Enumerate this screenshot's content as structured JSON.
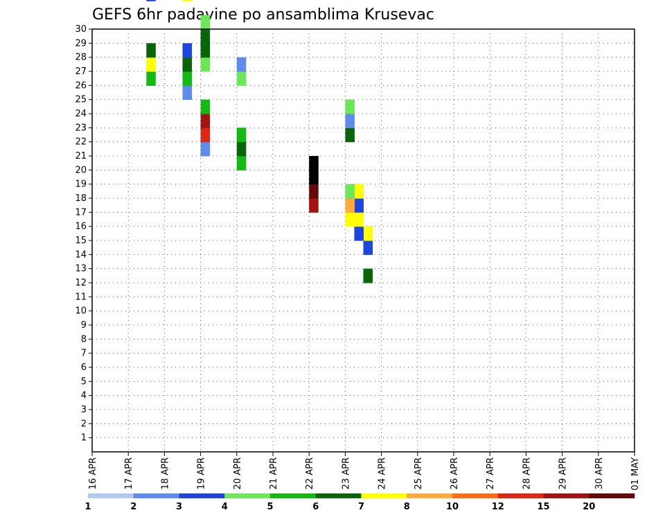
{
  "chart_data": {
    "type": "heatmap",
    "title": "GEFS 6hr padavine po ansamblima Krusevac",
    "x_tick_labels": [
      "16 APR",
      "17 APR",
      "18 APR",
      "19 APR",
      "20 APR",
      "21 APR",
      "22 APR",
      "23 APR",
      "24 APR",
      "25 APR",
      "26 APR",
      "27 APR",
      "28 APR",
      "29 APR",
      "30 APR",
      "01 MAY"
    ],
    "x_range_days": [
      0,
      15
    ],
    "x_step_hours": 6,
    "y_tick_labels": [
      "1",
      "2",
      "3",
      "4",
      "5",
      "6",
      "7",
      "8",
      "9",
      "10",
      "11",
      "12",
      "13",
      "14",
      "15",
      "16",
      "17",
      "18",
      "19",
      "20",
      "21",
      "22",
      "23",
      "24",
      "25",
      "26",
      "27",
      "28",
      "29",
      "30"
    ],
    "y_range": [
      0,
      30
    ],
    "grid": "dotted",
    "colorbar": {
      "labels": [
        "1",
        "2",
        "3",
        "4",
        "5",
        "6",
        "7",
        "8",
        "10",
        "12",
        "15",
        "20"
      ],
      "colors": [
        "#b4c8f0",
        "#5f8cea",
        "#1e46dc",
        "#6ee65a",
        "#14b914",
        "#0a640a",
        "#ffff00",
        "#ffaa3c",
        "#ff6e14",
        "#dc2814",
        "#a01414",
        "#640a0a"
      ]
    },
    "cells": [
      [
        30,
        [
          [
            13,
            5
          ],
          [
            15,
            2
          ],
          [
            16,
            6
          ]
        ]
      ],
      [
        29,
        [
          [
            16,
            2
          ],
          [
            17,
            6
          ],
          [
            18,
            2
          ],
          [
            19,
            6
          ]
        ]
      ],
      [
        28,
        [
          [
            17,
            6
          ],
          [
            18,
            7
          ],
          [
            19,
            3
          ],
          [
            23,
            5
          ],
          [
            24,
            1
          ],
          [
            25,
            3
          ]
        ]
      ],
      [
        24,
        [
          [
            18,
            10
          ],
          [
            19,
            11
          ],
          [
            20,
            12
          ],
          [
            21,
            13
          ],
          [
            54,
            1
          ],
          [
            55,
            2
          ]
        ]
      ],
      [
        16,
        [
          [
            21,
            4
          ],
          [
            22,
            5
          ],
          [
            23,
            4
          ],
          [
            27,
            3
          ],
          [
            28,
            1
          ],
          [
            36,
            1
          ],
          [
            37,
            2
          ],
          [
            59,
            1
          ],
          [
            60,
            3
          ],
          [
            61,
            1
          ]
        ]
      ],
      [
        12,
        [
          [
            22,
            1
          ],
          [
            23,
            9
          ],
          [
            24,
            10
          ],
          [
            25,
            4
          ],
          [
            28,
            3
          ],
          [
            29,
            5
          ],
          [
            30,
            5
          ],
          [
            31,
            3
          ],
          [
            35,
            3
          ],
          [
            36,
            2
          ],
          [
            37,
            1
          ],
          [
            38,
            1
          ],
          [
            39,
            1
          ],
          [
            40,
            1
          ],
          [
            41,
            4
          ],
          [
            42,
            4
          ],
          [
            43,
            5
          ],
          [
            44,
            7
          ],
          [
            45,
            9
          ],
          [
            46,
            10
          ],
          [
            47,
            11
          ],
          [
            48,
            2
          ],
          [
            49,
            2
          ]
        ]
      ],
      [
        10,
        [
          [
            26,
            1
          ],
          [
            27,
            4
          ],
          [
            28,
            5
          ],
          [
            29,
            2
          ],
          [
            33,
            6
          ],
          [
            34,
            8
          ],
          [
            35,
            9
          ],
          [
            36,
            11
          ],
          [
            37,
            12
          ],
          [
            38,
            3
          ],
          [
            39,
            2
          ],
          [
            40,
            1
          ]
        ]
      ],
      [
        6,
        [
          [
            27,
            4
          ],
          [
            28,
            6
          ],
          [
            29,
            5
          ],
          [
            33,
            2
          ],
          [
            34,
            1
          ],
          [
            35,
            4
          ],
          [
            36,
            1
          ]
        ]
      ]
    ]
  }
}
